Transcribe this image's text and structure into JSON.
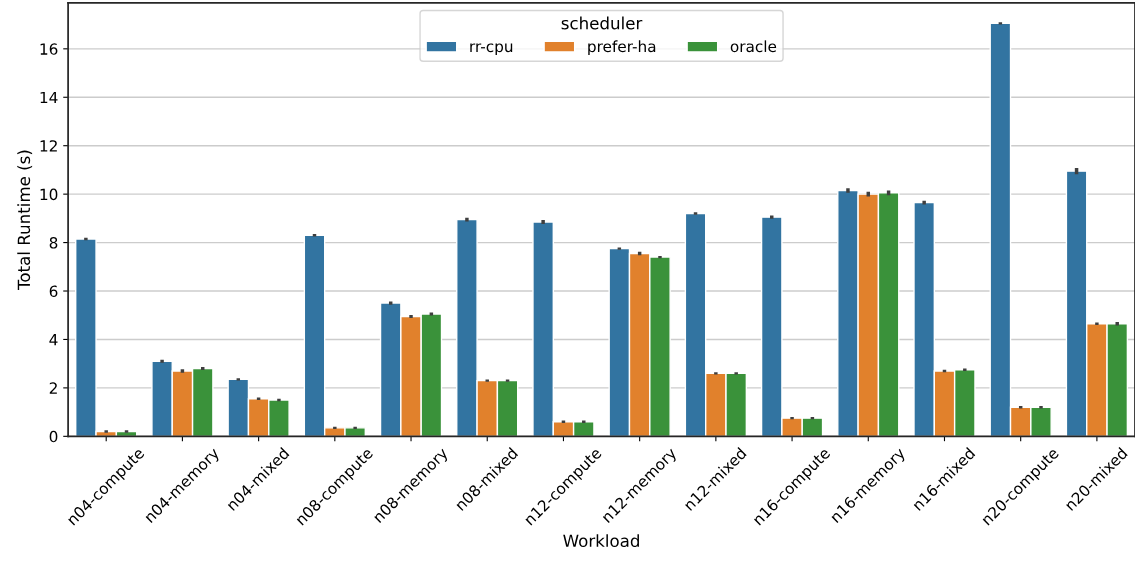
{
  "chart_data": {
    "type": "bar",
    "xlabel": "Workload",
    "ylabel": "Total Runtime (s)",
    "legend_title": "scheduler",
    "legend": "top",
    "categories": [
      "n04-compute",
      "n04-memory",
      "n04-mixed",
      "n08-compute",
      "n08-memory",
      "n08-mixed",
      "n12-compute",
      "n12-memory",
      "n12-mixed",
      "n16-compute",
      "n16-memory",
      "n16-mixed",
      "n20-compute",
      "n20-mixed"
    ],
    "series": [
      {
        "name": "rr-cpu",
        "color": "#3274a1",
        "values": [
          8.15,
          3.1,
          2.35,
          8.3,
          5.5,
          8.95,
          8.85,
          7.75,
          9.2,
          9.05,
          10.15,
          9.65,
          17.05,
          10.95
        ],
        "errors": [
          0.05,
          0.06,
          0.05,
          0.05,
          0.07,
          0.08,
          0.08,
          0.05,
          0.05,
          0.07,
          0.09,
          0.08,
          0.05,
          0.13
        ]
      },
      {
        "name": "prefer-ha",
        "color": "#e1812c",
        "values": [
          0.2,
          2.7,
          1.55,
          0.35,
          4.95,
          2.3,
          0.6,
          7.55,
          2.6,
          0.75,
          10.0,
          2.7,
          1.2,
          4.65
        ],
        "errors": [
          0.05,
          0.07,
          0.05,
          0.05,
          0.06,
          0.05,
          0.05,
          0.07,
          0.05,
          0.05,
          0.1,
          0.05,
          0.05,
          0.05
        ]
      },
      {
        "name": "oracle",
        "color": "#3a923a",
        "values": [
          0.2,
          2.8,
          1.5,
          0.35,
          5.05,
          2.3,
          0.6,
          7.4,
          2.6,
          0.75,
          10.05,
          2.75,
          1.2,
          4.65
        ],
        "errors": [
          0.05,
          0.06,
          0.05,
          0.05,
          0.06,
          0.05,
          0.05,
          0.05,
          0.05,
          0.05,
          0.1,
          0.05,
          0.05,
          0.07
        ]
      }
    ],
    "ylim": [
      0,
      17.9
    ],
    "yticks": [
      0,
      2,
      4,
      6,
      8,
      10,
      12,
      14,
      16
    ],
    "grid": "y"
  }
}
